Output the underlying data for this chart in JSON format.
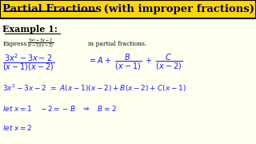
{
  "bg_color": "#FFFFF0",
  "title_bg": "#FFD700",
  "title_text": "Partial Fractions",
  "title_suffix": " (with improper fractions)",
  "text_color_blue": "#1a1aff",
  "text_color_dark": "#000080",
  "text_color_black": "#000000"
}
